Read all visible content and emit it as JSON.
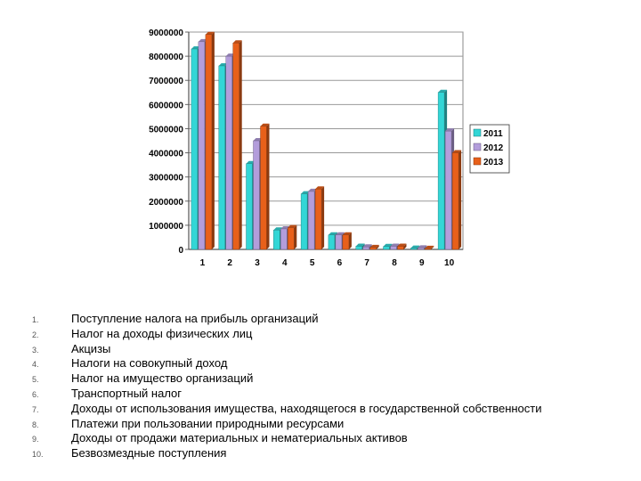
{
  "chart_data": {
    "type": "bar",
    "categories": [
      "1",
      "2",
      "3",
      "4",
      "5",
      "6",
      "7",
      "8",
      "9",
      "10"
    ],
    "series": [
      {
        "name": "2011",
        "color": "#33d6d6",
        "values": [
          8300000,
          7600000,
          3550000,
          800000,
          2300000,
          600000,
          130000,
          120000,
          50000,
          6500000
        ]
      },
      {
        "name": "2012",
        "color": "#b39ddb",
        "values": [
          8600000,
          8000000,
          4500000,
          850000,
          2400000,
          600000,
          100000,
          130000,
          60000,
          4900000
        ]
      },
      {
        "name": "2013",
        "color": "#e8601a",
        "values": [
          8900000,
          8550000,
          5100000,
          900000,
          2500000,
          600000,
          80000,
          130000,
          40000,
          4000000
        ]
      }
    ],
    "y_ticks": [
      "0",
      "1000000",
      "2000000",
      "3000000",
      "4000000",
      "5000000",
      "6000000",
      "7000000",
      "8000000",
      "9000000"
    ],
    "ylim": [
      0,
      9000000
    ],
    "grid": true,
    "legend_position": "right"
  },
  "legend_items": [
    {
      "num": "1.",
      "text": "Поступление налога на прибыль организаций"
    },
    {
      "num": "2.",
      "text": "Налог на доходы физических лиц"
    },
    {
      "num": "3.",
      "text": "Акцизы"
    },
    {
      "num": "4.",
      "text": "Налоги  на совокупный доход"
    },
    {
      "num": "5.",
      "text": "Налог на имущество организаций"
    },
    {
      "num": "6.",
      "text": "Транспортный налог"
    },
    {
      "num": "7.",
      "text": "Доходы от использования имущества, находящегося в государственной собственности"
    },
    {
      "num": "8.",
      "text": "Платежи при пользовании природными ресурсами"
    },
    {
      "num": "9.",
      "text": "Доходы от продажи материальных и нематериальных активов"
    },
    {
      "num": "10.",
      "text": "Безвозмездные поступления"
    }
  ]
}
